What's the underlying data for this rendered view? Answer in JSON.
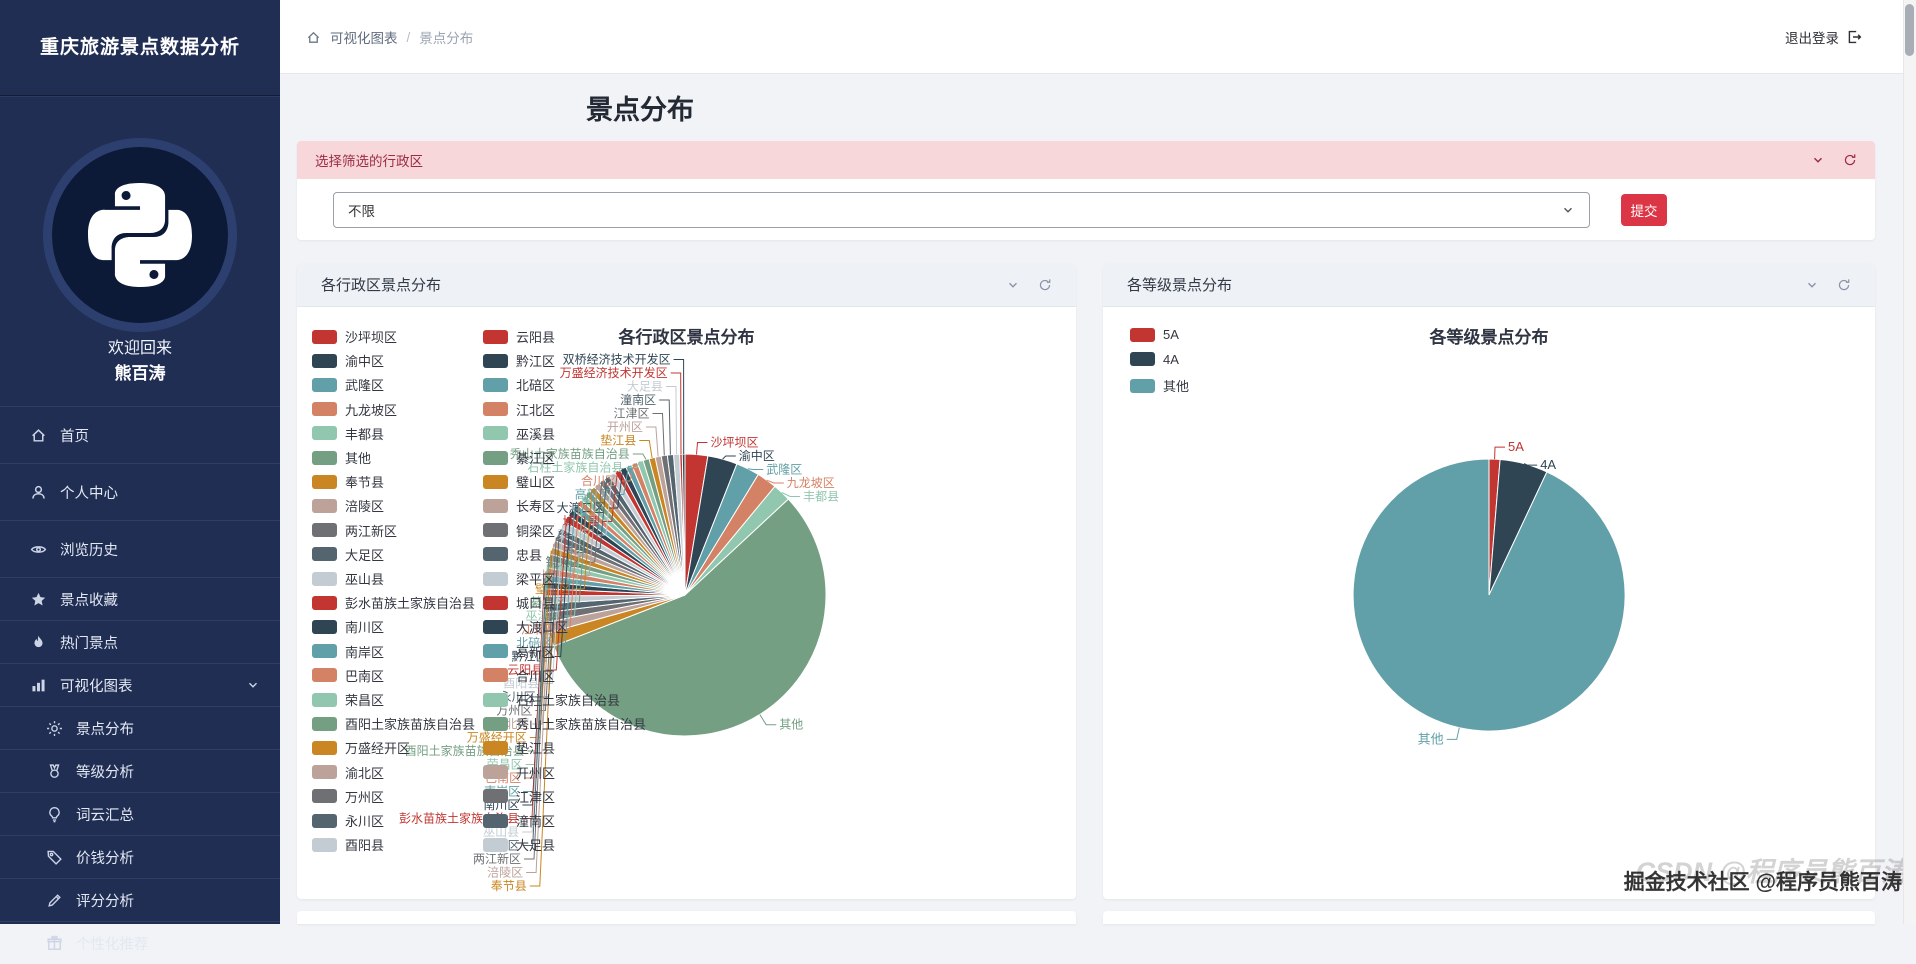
{
  "app": {
    "title": "重庆旅游景点数据分析"
  },
  "sidebar": {
    "welcome": "欢迎回来",
    "username": "熊百涛",
    "items": [
      {
        "label": "首页",
        "icon": "home-icon"
      },
      {
        "label": "个人中心",
        "icon": "user-icon"
      },
      {
        "label": "浏览历史",
        "icon": "eye-icon"
      },
      {
        "label": "景点收藏",
        "icon": "star-icon"
      },
      {
        "label": "热门景点",
        "icon": "fire-icon"
      },
      {
        "label": "可视化图表",
        "icon": "bar-chart-icon",
        "expanded": true
      },
      {
        "label": "景点分布",
        "icon": "sun-icon",
        "active": true
      },
      {
        "label": "等级分析",
        "icon": "medal-icon"
      },
      {
        "label": "词云汇总",
        "icon": "bulb-icon"
      },
      {
        "label": "价钱分析",
        "icon": "tag-icon"
      },
      {
        "label": "评分分析",
        "icon": "pen-icon"
      },
      {
        "label": "个性化推荐",
        "icon": "gift-icon"
      }
    ]
  },
  "topbar": {
    "breadcrumb": [
      "可视化图表",
      "景点分布"
    ],
    "separator": "/",
    "logout_label": "退出登录"
  },
  "page": {
    "title": "景点分布"
  },
  "filter": {
    "title": "选择筛选的行政区",
    "select_value": "不限",
    "submit_label": "提交"
  },
  "cards": {
    "district_header": "各行政区景点分布",
    "level_header": "各等级景点分布"
  },
  "watermark": {
    "primary": "掘金技术社区 @程序员熊百涛",
    "ghost": "CSDN @程序员熊百涛"
  },
  "colors": {
    "sidebar_bg": "#202e54",
    "filter_header_bg": "#f8d7da",
    "filter_header_text": "#9c2b43",
    "submit_button": "#dc3545",
    "card_header_bg": "#eef1f6"
  },
  "palette": [
    "#c23531",
    "#2f4554",
    "#61a0a8",
    "#d48265",
    "#91c7ae",
    "#749f83",
    "#ca8622",
    "#bda29a",
    "#6e7074",
    "#546570",
    "#c4ccd3"
  ],
  "chart_data": [
    {
      "type": "pie",
      "title": "各行政区景点分布",
      "legend_position": "left",
      "labels_with_leader_lines": true,
      "categories": [
        "沙坪坝区",
        "渝中区",
        "武隆区",
        "九龙坡区",
        "丰都县",
        "其他",
        "奉节县",
        "涪陵区",
        "两江新区",
        "大足区",
        "巫山县",
        "彭水苗族土家族自治县",
        "南川区",
        "南岸区",
        "巴南区",
        "荣昌区",
        "酉阳土家族苗族自治县",
        "万盛经开区",
        "渝北区",
        "万州区",
        "永川区",
        "酉阳县",
        "云阳县",
        "黔江区",
        "北碚区",
        "江北区",
        "巫溪县",
        "綦江区",
        "璧山区",
        "长寿区",
        "铜梁区",
        "忠县",
        "梁平区",
        "城口县",
        "大渡口区",
        "高新区",
        "合川区",
        "石柱土家族自治县",
        "秀山土家族苗族自治县",
        "垫江县",
        "开州区",
        "江津区",
        "潼南区",
        "大足县",
        "万盛经济技术开发区",
        "双桥经济技术开发区"
      ],
      "values": [
        26,
        34,
        27,
        23,
        21,
        560,
        16,
        12,
        11,
        10,
        9,
        8,
        8,
        8,
        8,
        8,
        8,
        8,
        8,
        8,
        8,
        8,
        8,
        8,
        8,
        7,
        7,
        7,
        7,
        7,
        7,
        7,
        7,
        7,
        7,
        7,
        7,
        7,
        7,
        7,
        7,
        7,
        7,
        7,
        3,
        3
      ]
    },
    {
      "type": "pie",
      "title": "各等级景点分布",
      "legend_position": "left",
      "categories": [
        "5A",
        "4A",
        "其他"
      ],
      "values": [
        13,
        57,
        930
      ]
    }
  ]
}
